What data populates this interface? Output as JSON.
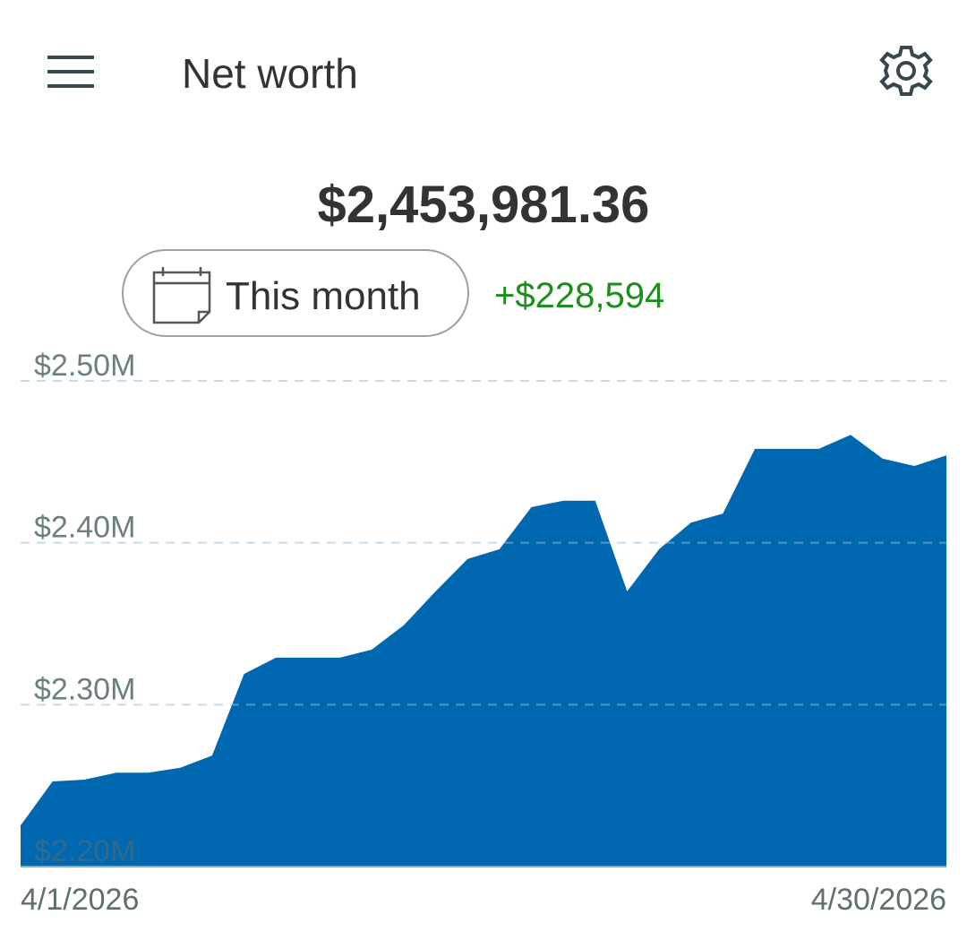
{
  "header": {
    "title": "Net worth"
  },
  "summary": {
    "total": "$2,453,981.36",
    "period": "This month",
    "change": "+$228,594"
  },
  "chart_data": {
    "type": "area",
    "categories": [
      "4/1/2026",
      null,
      null,
      null,
      null,
      null,
      null,
      null,
      null,
      null,
      null,
      null,
      null,
      null,
      null,
      null,
      null,
      null,
      null,
      null,
      null,
      null,
      null,
      null,
      null,
      null,
      null,
      null,
      null,
      "4/30/2026"
    ],
    "values": [
      2225387,
      2252600,
      2253700,
      2258000,
      2258000,
      2261000,
      2268600,
      2319000,
      2329000,
      2329000,
      2329000,
      2334000,
      2349000,
      2370000,
      2390000,
      2396000,
      2422000,
      2426000,
      2426000,
      2370000,
      2396000,
      2412500,
      2418000,
      2458000,
      2458000,
      2458000,
      2466700,
      2452000,
      2447400,
      2453981.36
    ],
    "color": "#0067b1",
    "ylim": [
      2200000,
      2500000
    ],
    "yticks": [
      {
        "value": 2200000,
        "label": "$2.20M"
      },
      {
        "value": 2300000,
        "label": "$2.30M"
      },
      {
        "value": 2400000,
        "label": "$2.40M"
      },
      {
        "value": 2500000,
        "label": "$2.50M"
      }
    ],
    "grid": true
  }
}
